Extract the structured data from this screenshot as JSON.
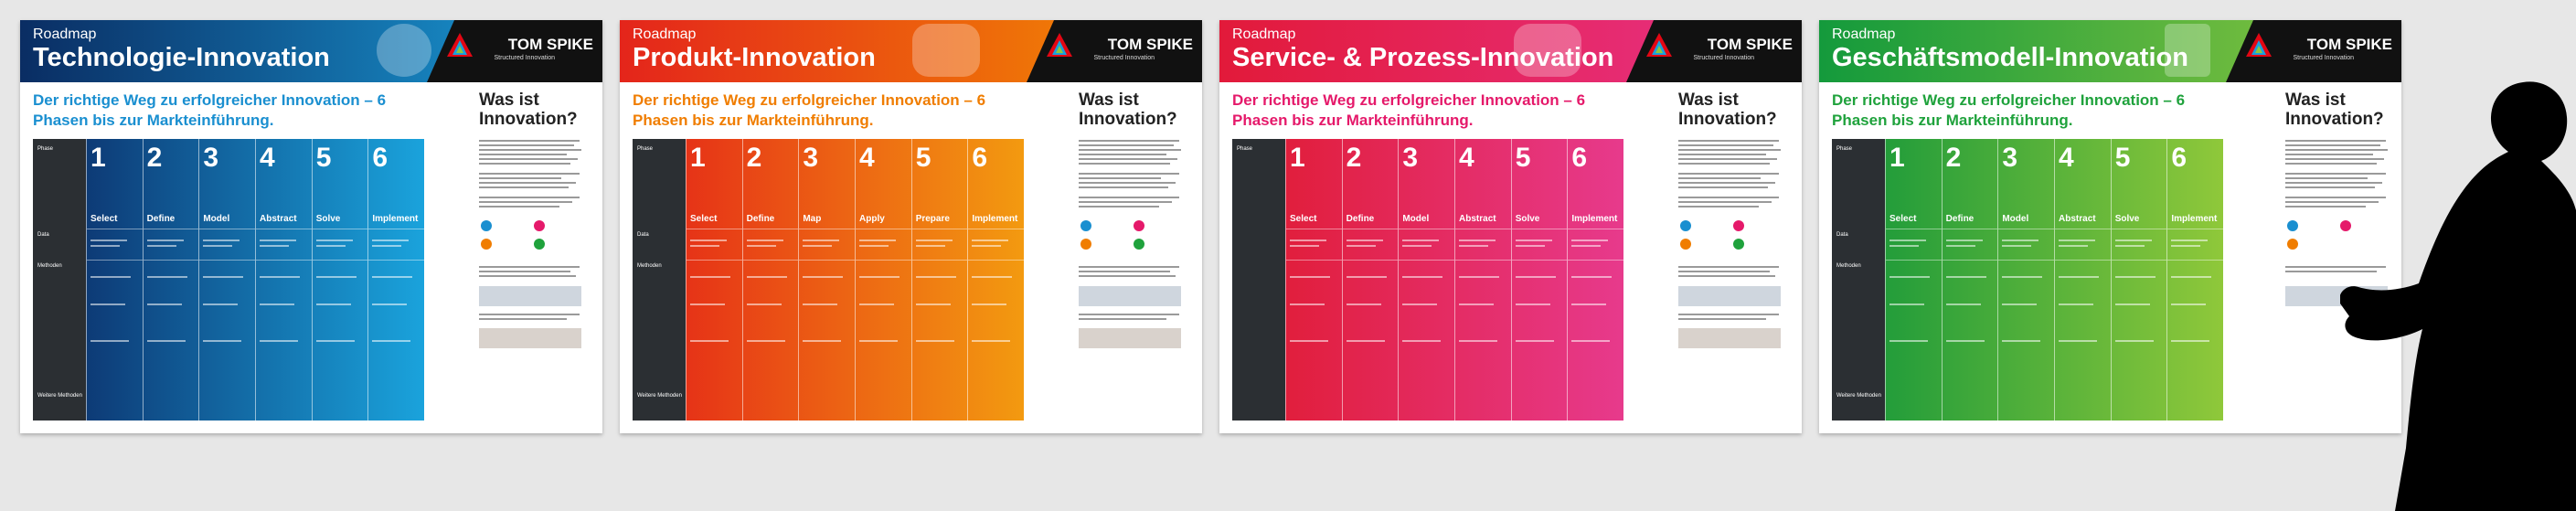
{
  "posters": [
    {
      "kicker": "Roadmap",
      "title": "Technologie-Innovation",
      "subline": "Der richtige Weg zu erfolgreicher Innovation – 6 Phasen bis zur Markteinführung.",
      "phases": [
        "Select",
        "Define",
        "Model",
        "Abstract",
        "Solve",
        "Implement"
      ],
      "colors": {
        "header_from": "#0a2d63",
        "header_to": "#1aa0dc",
        "accent": "#1a8fd0",
        "grad_from": "#0b2a66",
        "grad_to": "#1aa3dc"
      }
    },
    {
      "kicker": "Roadmap",
      "title": "Produkt-Innovation",
      "subline": "Der richtige Weg zu erfolgreicher Innovation – 6 Phasen bis zur Markteinführung.",
      "phases": [
        "Select",
        "Define",
        "Map",
        "Apply",
        "Prepare",
        "Implement"
      ],
      "colors": {
        "header_from": "#e4251b",
        "header_to": "#f39200",
        "accent": "#f07d00",
        "grad_from": "#e42318",
        "grad_to": "#f39a10"
      }
    },
    {
      "kicker": "Roadmap",
      "title": "Service- & Prozess-Innovation",
      "subline": "Der richtige Weg zu erfolgreicher Innovation – 6 Phasen bis zur Markteinführung.",
      "phases": [
        "Select",
        "Define",
        "Model",
        "Abstract",
        "Solve",
        "Implement"
      ],
      "colors": {
        "header_from": "#e21a3a",
        "header_to": "#e8338a",
        "accent": "#e5196a",
        "grad_from": "#e01a30",
        "grad_to": "#e73a8c"
      }
    },
    {
      "kicker": "Roadmap",
      "title": "Geschäftsmodell-Innovation",
      "subline": "Der richtige Weg zu erfolgreicher Innovation – 6 Phasen bis zur Markteinführung.",
      "phases": [
        "Select",
        "Define",
        "Model",
        "Abstract",
        "Solve",
        "Implement"
      ],
      "colors": {
        "header_from": "#149a3c",
        "header_to": "#8dc63f",
        "accent": "#1fa23c",
        "grad_from": "#12963a",
        "grad_to": "#8fc83a"
      }
    }
  ],
  "row_labels": {
    "phase": "Phase",
    "data": "Data",
    "methods": "Methoden",
    "more": "Weitere Methoden"
  },
  "phase_numbers": [
    "1",
    "2",
    "3",
    "4",
    "5",
    "6"
  ],
  "brand": {
    "name": "TOM SPIKE",
    "tagline": "Structured Innovation"
  },
  "side_title": "Was ist Innovation?",
  "icons": [
    "gear-icon",
    "car-icon",
    "briefcase-icon",
    "chart-icon"
  ]
}
